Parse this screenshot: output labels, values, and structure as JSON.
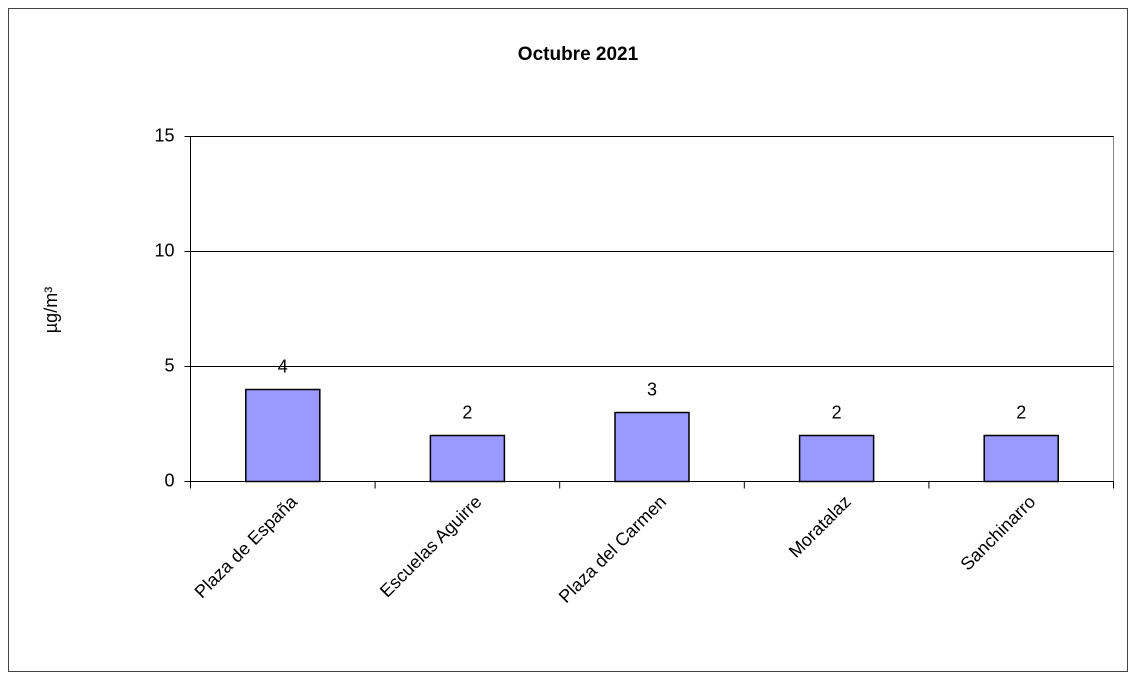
{
  "chart_data": {
    "type": "bar",
    "title": "Octubre 2021",
    "y_label": "µg/m³",
    "categories": [
      "Plaza de España",
      "Escuelas Aguirre",
      "Plaza del Carmen",
      "Moratalaz",
      "Sanchinarro"
    ],
    "values": [
      4,
      2,
      3,
      2,
      2
    ],
    "color": "#9999ff",
    "ylim": [
      0,
      15
    ],
    "yticks": [
      0,
      5,
      10,
      15
    ],
    "grid": true
  }
}
